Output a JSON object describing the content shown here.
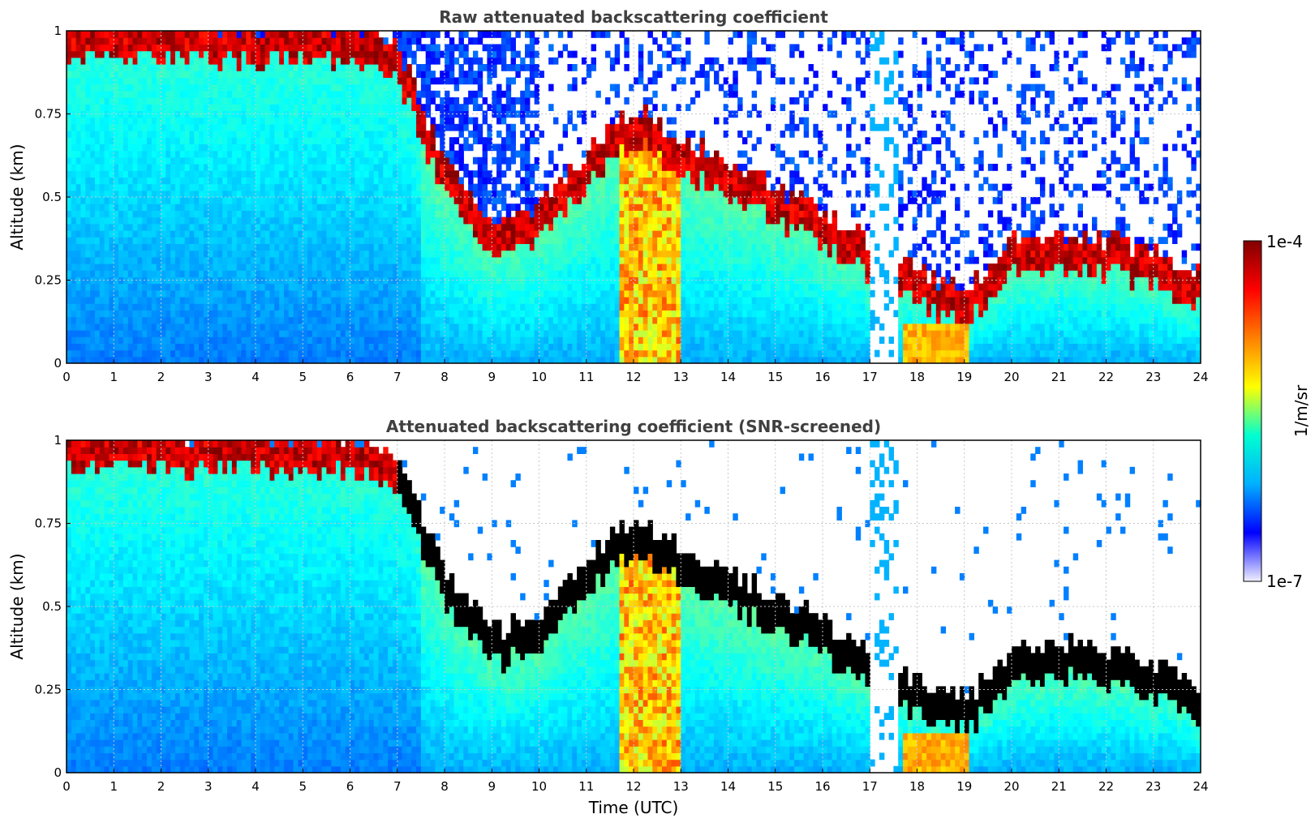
{
  "chart_data": [
    {
      "type": "heatmap",
      "title": "Raw attenuated backscattering coefficient",
      "xlabel": "",
      "ylabel": "Altitude (km)",
      "xlim": [
        0,
        24
      ],
      "ylim": [
        0,
        1
      ],
      "xticks": [
        "0",
        "1",
        "2",
        "3",
        "4",
        "5",
        "6",
        "7",
        "8",
        "9",
        "10",
        "11",
        "12",
        "13",
        "14",
        "15",
        "16",
        "17",
        "18",
        "19",
        "20",
        "21",
        "22",
        "23",
        "24"
      ],
      "yticks": [
        "0",
        "0.25",
        "0.5",
        "0.75",
        "1"
      ],
      "grid": true,
      "screened": false,
      "boundary_layer_top_km": [
        {
          "t": 0,
          "h": 0.97
        },
        {
          "t": 2,
          "h": 0.97
        },
        {
          "t": 4,
          "h": 0.96
        },
        {
          "t": 6,
          "h": 0.96
        },
        {
          "t": 7,
          "h": 0.9
        },
        {
          "t": 8,
          "h": 0.55
        },
        {
          "t": 9,
          "h": 0.38
        },
        {
          "t": 10,
          "h": 0.42
        },
        {
          "t": 11,
          "h": 0.6
        },
        {
          "t": 12,
          "h": 0.72
        },
        {
          "t": 13,
          "h": 0.62
        },
        {
          "t": 14,
          "h": 0.55
        },
        {
          "t": 15,
          "h": 0.48
        },
        {
          "t": 16,
          "h": 0.4
        },
        {
          "t": 17,
          "h": 0.3
        },
        {
          "t": 18,
          "h": 0.22
        },
        {
          "t": 19,
          "h": 0.18
        },
        {
          "t": 20,
          "h": 0.32
        },
        {
          "t": 21,
          "h": 0.34
        },
        {
          "t": 22,
          "h": 0.32
        },
        {
          "t": 23,
          "h": 0.28
        },
        {
          "t": 23.9,
          "h": 0.22
        }
      ]
    },
    {
      "type": "heatmap",
      "title": "Attenuated backscattering coefficient (SNR-screened)",
      "xlabel": "Time (UTC)",
      "ylabel": "Altitude (km)",
      "xlim": [
        0,
        24
      ],
      "ylim": [
        0,
        1
      ],
      "xticks": [
        "0",
        "1",
        "2",
        "3",
        "4",
        "5",
        "6",
        "7",
        "8",
        "9",
        "10",
        "11",
        "12",
        "13",
        "14",
        "15",
        "16",
        "17",
        "18",
        "19",
        "20",
        "21",
        "22",
        "23",
        "24"
      ],
      "yticks": [
        "0",
        "0.25",
        "0.5",
        "0.75",
        "1"
      ],
      "grid": true,
      "screened": true,
      "boundary_layer_top_km": [
        {
          "t": 0,
          "h": 0.97
        },
        {
          "t": 2,
          "h": 0.97
        },
        {
          "t": 4,
          "h": 0.96
        },
        {
          "t": 6,
          "h": 0.96
        },
        {
          "t": 7,
          "h": 0.9
        },
        {
          "t": 8,
          "h": 0.55
        },
        {
          "t": 9,
          "h": 0.38
        },
        {
          "t": 10,
          "h": 0.42
        },
        {
          "t": 11,
          "h": 0.6
        },
        {
          "t": 12,
          "h": 0.72
        },
        {
          "t": 13,
          "h": 0.62
        },
        {
          "t": 14,
          "h": 0.55
        },
        {
          "t": 15,
          "h": 0.48
        },
        {
          "t": 16,
          "h": 0.4
        },
        {
          "t": 17,
          "h": 0.3
        },
        {
          "t": 18,
          "h": 0.22
        },
        {
          "t": 19,
          "h": 0.18
        },
        {
          "t": 20,
          "h": 0.32
        },
        {
          "t": 21,
          "h": 0.34
        },
        {
          "t": 22,
          "h": 0.32
        },
        {
          "t": 23,
          "h": 0.28
        },
        {
          "t": 23.9,
          "h": 0.22
        }
      ]
    }
  ],
  "colorbar": {
    "label": "1/m/sr",
    "max_label": "1e-4",
    "min_label": "1e-7",
    "colormap": "jet",
    "stops": [
      "#f0f0ff",
      "#0000ff",
      "#00b0ff",
      "#00ffd0",
      "#ffff00",
      "#ff8000",
      "#ff0000",
      "#800000"
    ]
  }
}
